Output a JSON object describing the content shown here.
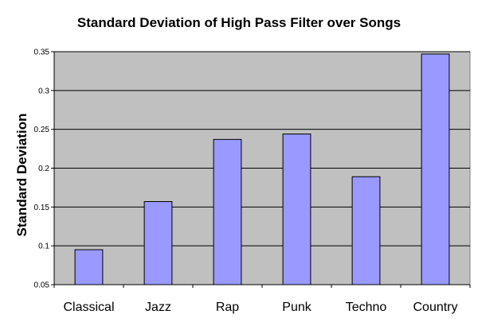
{
  "chart_data": {
    "type": "bar",
    "title": "Standard Deviation of High Pass Filter over Songs",
    "xlabel": "",
    "ylabel": "Standard Deviation",
    "categories": [
      "Classical",
      "Jazz",
      "Rap",
      "Punk",
      "Techno",
      "Country"
    ],
    "values": [
      0.095,
      0.157,
      0.237,
      0.244,
      0.189,
      0.347
    ],
    "ylim": [
      0.05,
      0.35
    ],
    "yticks": [
      "0.05",
      "0.1",
      "0.15",
      "0.2",
      "0.25",
      "0.3",
      "0.35"
    ],
    "grid": true,
    "legend": "none",
    "colors": {
      "plot_background": "#c0c0c0",
      "bar_fill": "#9999ff",
      "bar_stroke": "#000000",
      "grid": "#000000"
    }
  }
}
